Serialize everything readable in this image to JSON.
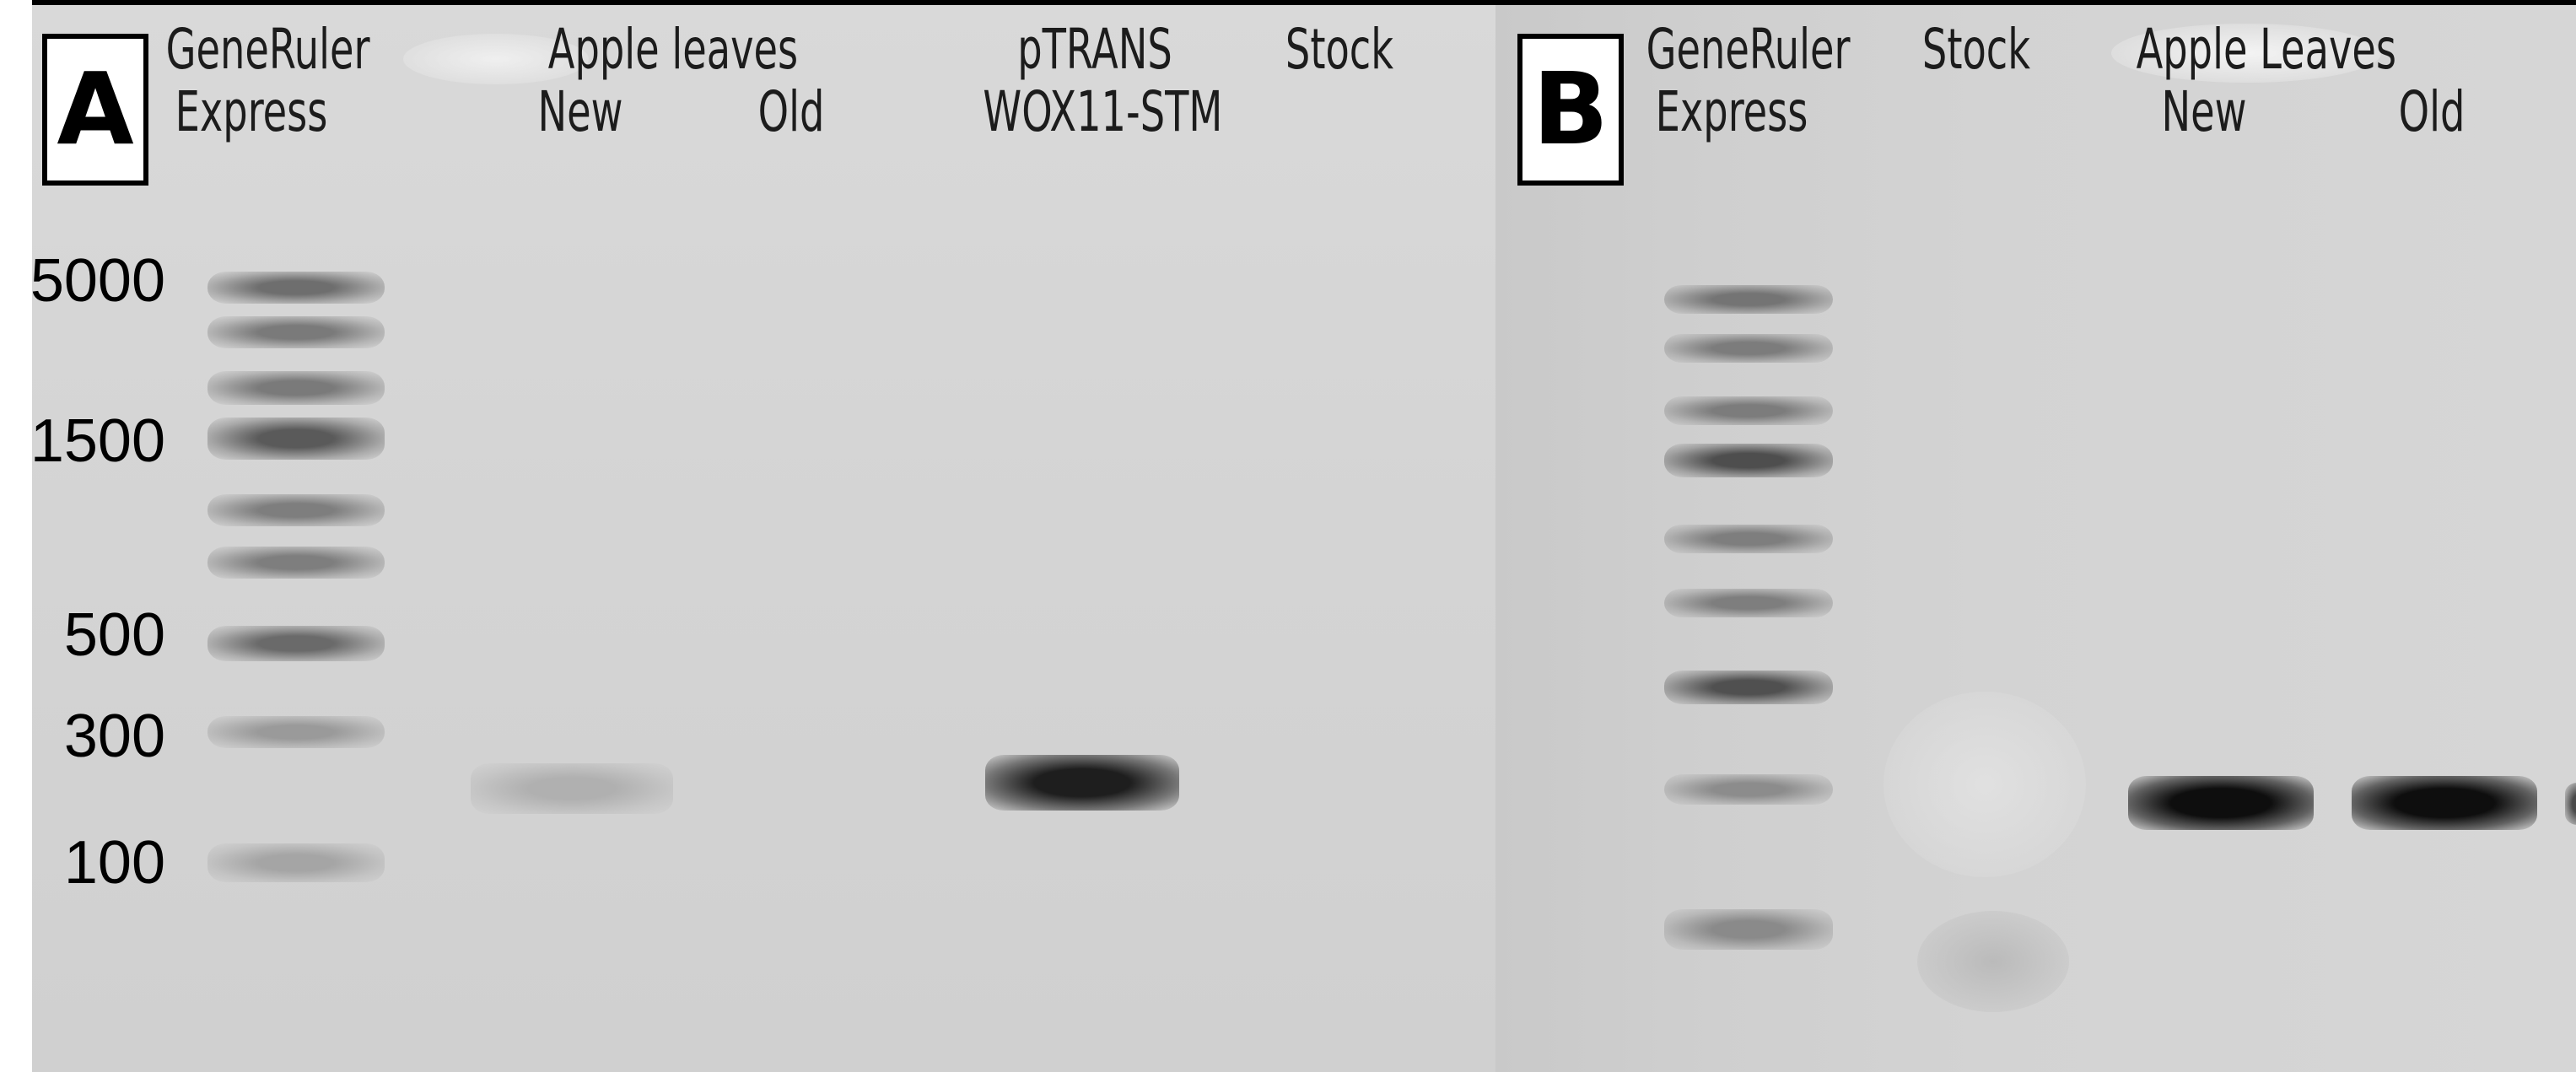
{
  "panel_a": {
    "letter": "A",
    "lanes": {
      "ladder": [
        "GeneRuler",
        "Express"
      ],
      "apple_leaves": "Apple leaves",
      "new": "New",
      "old": "Old",
      "ptrans": [
        "pTRANS",
        "WOX11-STM"
      ],
      "stock": "Stock"
    },
    "size_markers": [
      "5000",
      "1500",
      "500",
      "300",
      "100"
    ]
  },
  "panel_b": {
    "letter": "B",
    "lanes": {
      "ladder": [
        "GeneRuler",
        "Express"
      ],
      "stock": "Stock",
      "apple_leaves": "Apple Leaves",
      "new": "New",
      "old": "Old"
    }
  },
  "colors": {
    "gel_background": "#d4d4d4",
    "band_dark": "#1a1a1a",
    "ladder_band": "#7a7a7a",
    "label_text": "#1c1c1c"
  }
}
